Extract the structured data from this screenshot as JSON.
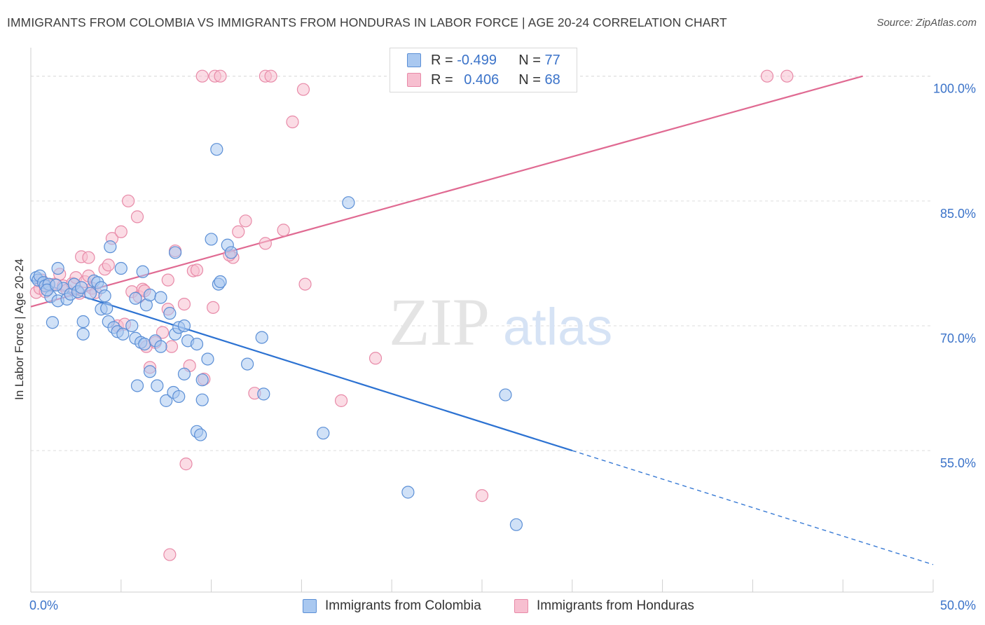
{
  "title": "IMMIGRANTS FROM COLOMBIA VS IMMIGRANTS FROM HONDURAS IN LABOR FORCE | AGE 20-24 CORRELATION CHART",
  "source": "Source: ZipAtlas.com",
  "watermark": {
    "zip": "ZIP",
    "atlas": "atlas"
  },
  "legend": {
    "rows": [
      {
        "r_label": "R =",
        "r_value": "-0.499",
        "n_label": "N =",
        "n_value": "77"
      },
      {
        "r_label": "R =",
        "r_value": "0.406",
        "n_label": "N =",
        "n_value": "68"
      }
    ]
  },
  "bottom_legend": {
    "colombia": "Immigrants from Colombia",
    "honduras": "Immigrants from Honduras"
  },
  "colors": {
    "colombia_fill": "#a9c8f0",
    "colombia_stroke": "#5b8fd6",
    "colombia_line": "#2c72d2",
    "honduras_fill": "#f7bfd0",
    "honduras_stroke": "#e88aa8",
    "honduras_line": "#e06a92",
    "axis_label": "#3b73c9",
    "grid": "#dedede"
  },
  "chart_data": {
    "type": "scatter",
    "title": "IMMIGRANTS FROM COLOMBIA VS IMMIGRANTS FROM HONDURAS IN LABOR FORCE | AGE 20-24 CORRELATION CHART",
    "xlabel": "",
    "ylabel": "In Labor Force | Age 20-24",
    "xlim": [
      0,
      50
    ],
    "ylim": [
      38,
      102.5
    ],
    "x_tick_labels": [
      "0.0%",
      "50.0%"
    ],
    "y_ticks": [
      55,
      70,
      85,
      100
    ],
    "y_tick_labels": [
      "55.0%",
      "70.0%",
      "85.0%",
      "100.0%"
    ],
    "grid": "horizontal dashed",
    "legend_position": "top-center",
    "series": [
      {
        "name": "Immigrants from Colombia",
        "r": -0.499,
        "n": 77,
        "trend": {
          "x0": 0,
          "y0": 75.5,
          "x1": 30,
          "y1": 55.0,
          "dashed_to_x": 50,
          "dashed_to_y": 41.3
        },
        "points": [
          [
            0.3,
            75.8
          ],
          [
            0.4,
            75.5
          ],
          [
            0.5,
            76.0
          ],
          [
            0.7,
            75.2
          ],
          [
            0.8,
            74.8
          ],
          [
            1.0,
            75.0
          ],
          [
            1.1,
            73.5
          ],
          [
            0.9,
            74.3
          ],
          [
            1.5,
            73.0
          ],
          [
            1.8,
            74.5
          ],
          [
            2.0,
            73.2
          ],
          [
            2.2,
            73.8
          ],
          [
            2.4,
            75.0
          ],
          [
            2.6,
            74.1
          ],
          [
            1.4,
            74.9
          ],
          [
            2.8,
            74.6
          ],
          [
            3.3,
            73.9
          ],
          [
            3.5,
            75.4
          ],
          [
            3.7,
            75.2
          ],
          [
            3.9,
            74.6
          ],
          [
            4.1,
            73.6
          ],
          [
            1.2,
            70.4
          ],
          [
            1.5,
            76.9
          ],
          [
            2.9,
            70.5
          ],
          [
            2.9,
            69.0
          ],
          [
            3.9,
            72.0
          ],
          [
            4.2,
            72.1
          ],
          [
            4.3,
            70.5
          ],
          [
            4.6,
            69.8
          ],
          [
            4.8,
            69.3
          ],
          [
            5.1,
            69.0
          ],
          [
            5.6,
            70.0
          ],
          [
            5.8,
            68.5
          ],
          [
            6.1,
            68.0
          ],
          [
            6.3,
            67.8
          ],
          [
            6.9,
            68.2
          ],
          [
            7.2,
            67.5
          ],
          [
            4.4,
            79.5
          ],
          [
            5.0,
            76.9
          ],
          [
            6.2,
            76.5
          ],
          [
            5.8,
            73.3
          ],
          [
            6.4,
            72.5
          ],
          [
            6.6,
            73.7
          ],
          [
            7.2,
            73.4
          ],
          [
            7.7,
            71.5
          ],
          [
            8.0,
            69.0
          ],
          [
            8.2,
            69.8
          ],
          [
            8.5,
            64.2
          ],
          [
            8.7,
            68.2
          ],
          [
            9.2,
            67.8
          ],
          [
            9.5,
            63.5
          ],
          [
            9.8,
            66.0
          ],
          [
            10.0,
            80.4
          ],
          [
            10.4,
            75.0
          ],
          [
            10.5,
            75.3
          ],
          [
            10.9,
            79.7
          ],
          [
            11.1,
            78.8
          ],
          [
            12.0,
            65.4
          ],
          [
            12.8,
            68.6
          ],
          [
            10.3,
            91.2
          ],
          [
            8.0,
            78.8
          ],
          [
            7.0,
            62.8
          ],
          [
            7.5,
            61.0
          ],
          [
            7.9,
            62.0
          ],
          [
            8.2,
            61.5
          ],
          [
            9.2,
            57.3
          ],
          [
            9.4,
            56.9
          ],
          [
            9.5,
            61.1
          ],
          [
            12.9,
            61.8
          ],
          [
            16.2,
            57.1
          ],
          [
            17.6,
            84.8
          ],
          [
            20.9,
            50.0
          ],
          [
            26.3,
            61.7
          ],
          [
            26.9,
            46.1
          ],
          [
            6.6,
            64.5
          ],
          [
            8.5,
            70.0
          ],
          [
            5.9,
            62.8
          ]
        ]
      },
      {
        "name": "Immigrants from Honduras",
        "r": 0.406,
        "n": 68,
        "trend": {
          "x0": 0,
          "y0": 72.3,
          "x1": 46.1,
          "y1": 100.0
        },
        "points": [
          [
            0.3,
            74.0
          ],
          [
            0.5,
            74.5
          ],
          [
            0.6,
            75.5
          ],
          [
            0.8,
            74.1
          ],
          [
            1.0,
            74.9
          ],
          [
            1.3,
            75.0
          ],
          [
            1.6,
            76.2
          ],
          [
            1.8,
            74.8
          ],
          [
            2.0,
            74.3
          ],
          [
            2.3,
            75.1
          ],
          [
            2.5,
            75.8
          ],
          [
            2.7,
            73.9
          ],
          [
            3.0,
            75.3
          ],
          [
            3.2,
            76.0
          ],
          [
            3.4,
            74.5
          ],
          [
            3.6,
            74.0
          ],
          [
            2.8,
            78.3
          ],
          [
            3.2,
            78.2
          ],
          [
            4.1,
            76.8
          ],
          [
            4.3,
            77.3
          ],
          [
            4.5,
            80.5
          ],
          [
            5.0,
            81.3
          ],
          [
            5.4,
            85.0
          ],
          [
            5.9,
            83.1
          ],
          [
            5.6,
            74.1
          ],
          [
            6.0,
            73.5
          ],
          [
            6.2,
            74.4
          ],
          [
            4.8,
            70.0
          ],
          [
            5.2,
            70.2
          ],
          [
            6.4,
            67.5
          ],
          [
            6.6,
            65.0
          ],
          [
            6.9,
            68.0
          ],
          [
            7.3,
            69.2
          ],
          [
            7.6,
            75.5
          ],
          [
            7.8,
            67.5
          ],
          [
            8.0,
            79.0
          ],
          [
            8.5,
            72.6
          ],
          [
            8.8,
            65.2
          ],
          [
            9.0,
            76.6
          ],
          [
            9.2,
            76.7
          ],
          [
            9.6,
            63.6
          ],
          [
            10.1,
            72.2
          ],
          [
            11.2,
            78.2
          ],
          [
            11.5,
            81.3
          ],
          [
            12.4,
            61.9
          ],
          [
            11.9,
            82.6
          ],
          [
            13.0,
            79.9
          ],
          [
            14.0,
            81.5
          ],
          [
            15.2,
            75.0
          ],
          [
            17.2,
            61.0
          ],
          [
            19.1,
            66.1
          ],
          [
            25.0,
            49.6
          ],
          [
            8.6,
            53.4
          ],
          [
            7.7,
            42.5
          ],
          [
            9.5,
            100.0
          ],
          [
            10.2,
            100.0
          ],
          [
            10.5,
            100.0
          ],
          [
            13.0,
            100.0
          ],
          [
            13.3,
            100.0
          ],
          [
            15.1,
            98.4
          ],
          [
            14.5,
            94.5
          ],
          [
            23.5,
            100.0
          ],
          [
            27.2,
            100.0
          ],
          [
            40.8,
            100.0
          ],
          [
            41.9,
            100.0
          ],
          [
            11.0,
            78.5
          ],
          [
            6.3,
            74.2
          ],
          [
            7.6,
            72.0
          ]
        ]
      }
    ]
  }
}
